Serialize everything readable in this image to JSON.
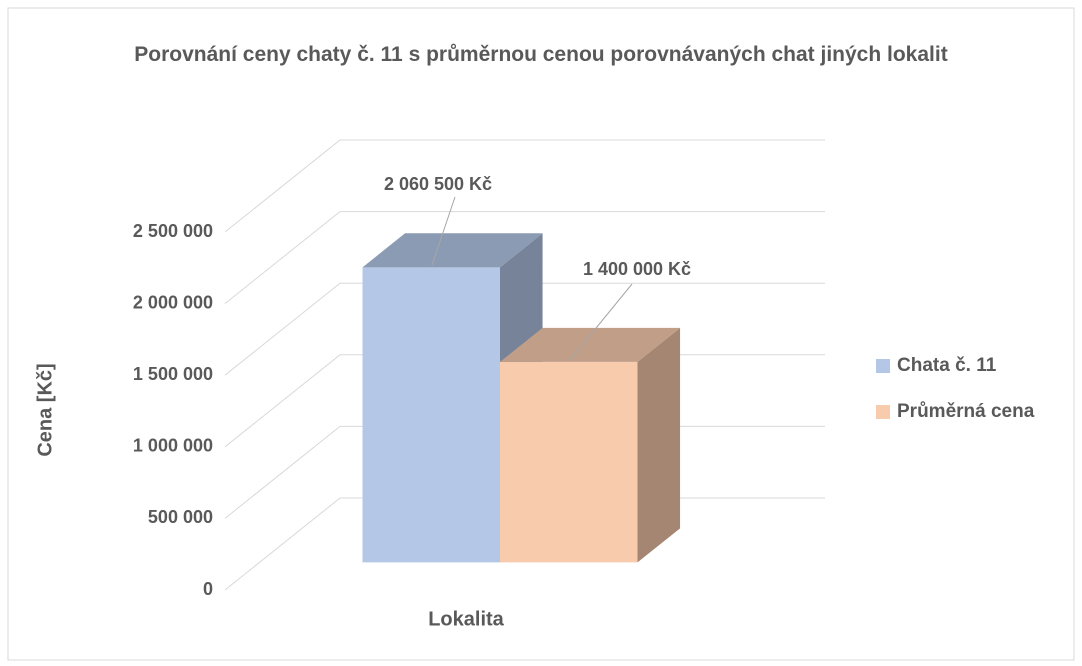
{
  "chart_data": {
    "type": "bar3d",
    "title": "Porovnání ceny chaty č. 11 s průměrnou cenou porovnávaných chat jiných lokalit",
    "x_label": "Lokalita",
    "y_label": "Cena [Kč]",
    "ylim": [
      0,
      2500000
    ],
    "yticks": [
      0,
      {
        "value": 500000,
        "label": "500 000"
      },
      {
        "value": 1000000,
        "label": "1 000 000"
      },
      {
        "value": 1500000,
        "label": "1 500 000"
      },
      {
        "value": 2000000,
        "label": "2 000 000"
      },
      {
        "value": 2500000,
        "label": "2 500 000"
      }
    ],
    "grid": true,
    "legend": "right",
    "series": [
      {
        "name": "Chata č. 11",
        "color": "#b4c7e7",
        "values": [
          2060500
        ],
        "value_labels": [
          "2 060 500 Kč"
        ]
      },
      {
        "name": "Průměrná cena",
        "color": "#f8cbad",
        "values": [
          1400000
        ],
        "value_labels": [
          "1 400 000 Kč"
        ]
      }
    ]
  }
}
